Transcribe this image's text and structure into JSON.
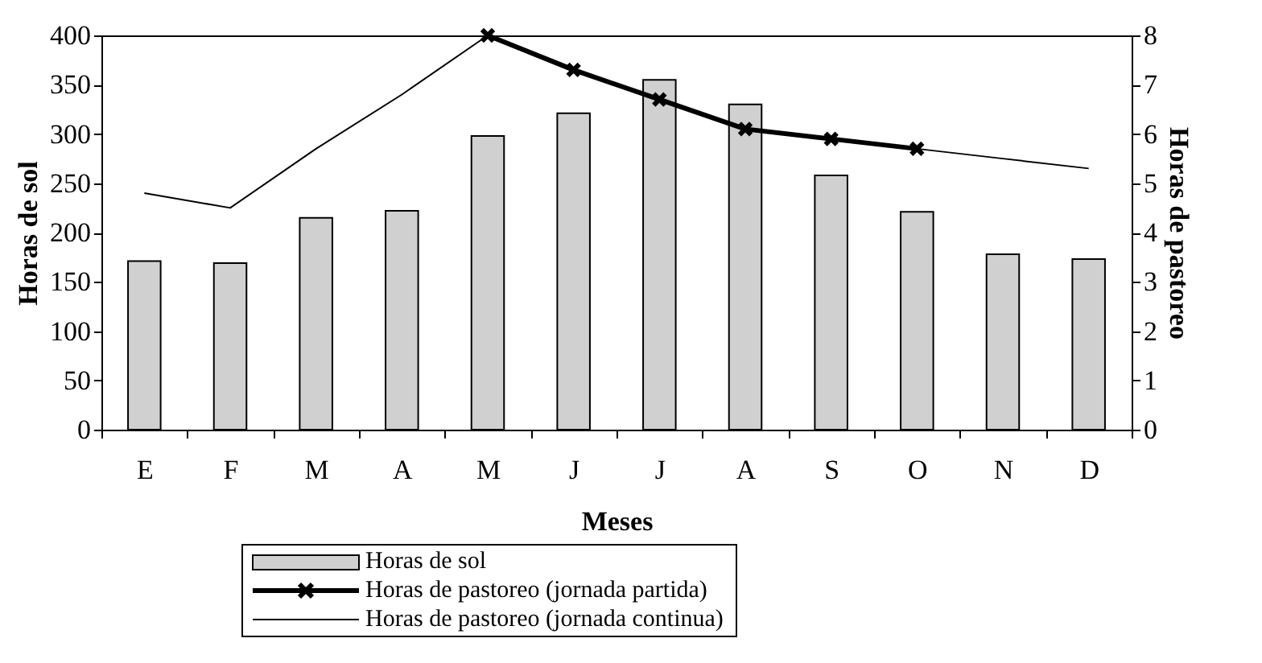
{
  "chart_data": {
    "type": "bar",
    "xlabel": "Meses",
    "ylabel": "Horas de sol",
    "y2label": "Horas de pastoreo",
    "categories": [
      "E",
      "F",
      "M",
      "A",
      "M",
      "J",
      "J",
      "A",
      "S",
      "O",
      "N",
      "D"
    ],
    "series": [
      {
        "name": "Horas de sol",
        "color": "#d0d0d0",
        "values": [
          171,
          169,
          215,
          222,
          298,
          321,
          355,
          330,
          258,
          221,
          178,
          173
        ]
      },
      {
        "name": "Horas de pastoreo (jornada partida)",
        "type": "line",
        "axis": "y2",
        "color": "#000000",
        "marker": "cross",
        "values": [
          null,
          null,
          null,
          null,
          8.0,
          7.3,
          6.7,
          6.1,
          5.9,
          5.7,
          null,
          null
        ]
      },
      {
        "name": "Horas de pastoreo (jornada continua)",
        "type": "line",
        "axis": "y2",
        "color": "#000000",
        "marker": "none",
        "values": [
          4.8,
          4.5,
          5.7,
          6.8,
          8.0,
          null,
          null,
          null,
          null,
          5.7,
          5.5,
          5.3
        ]
      }
    ],
    "ylim": [
      0,
      400
    ],
    "yticks": [
      0,
      50,
      100,
      150,
      200,
      250,
      300,
      350,
      400
    ],
    "y2lim": [
      0,
      8
    ],
    "y2ticks": [
      0,
      1,
      2,
      3,
      4,
      5,
      6,
      7,
      8
    ],
    "grid": false,
    "legend": "bottom"
  }
}
